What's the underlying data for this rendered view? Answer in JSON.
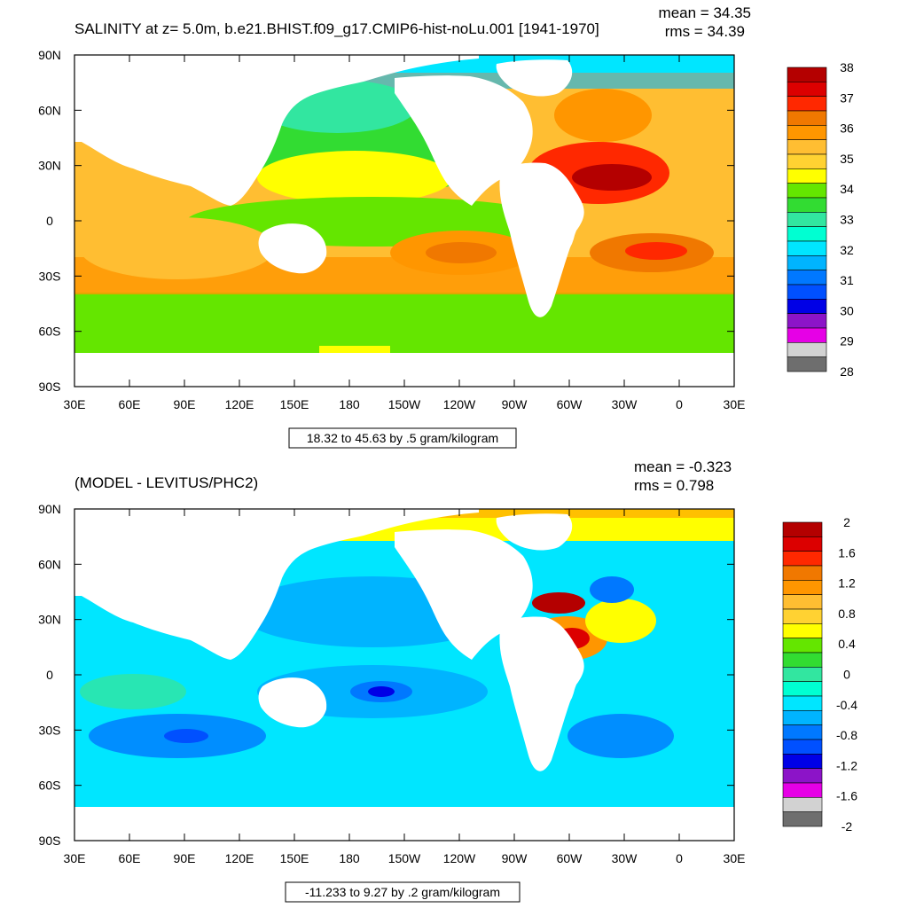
{
  "chart_data": [
    {
      "type": "heatmap",
      "title": "SALINITY at z=   5.0m, b.e21.BHIST.f09_g17.CMIP6-hist-noLu.001 [1941-1970]",
      "stats": {
        "mean": "mean = 34.35",
        "rms": "rms = 34.39"
      },
      "xticks": [
        "30E",
        "60E",
        "90E",
        "120E",
        "150E",
        "180",
        "150W",
        "120W",
        "90W",
        "60W",
        "30W",
        "0",
        "30E"
      ],
      "yticks": [
        "90N",
        "60N",
        "30N",
        "0",
        "30S",
        "60S",
        "90S"
      ],
      "contour_info": "18.32 to 45.63 by .5 gram/kilogram",
      "colorbar": {
        "labels": [
          "38",
          "37",
          "36",
          "35",
          "34",
          "33",
          "32",
          "31",
          "30",
          "29",
          "28"
        ],
        "colors": [
          "#b40000",
          "#dc0000",
          "#ff2800",
          "#f07800",
          "#ff9600",
          "#ffbe32",
          "#ffd232",
          "#ffff00",
          "#64e600",
          "#32dc32",
          "#32e6a0",
          "#00ffd2",
          "#00e6ff",
          "#00b4ff",
          "#0078ff",
          "#0050ff",
          "#0000e6",
          "#8c14c8",
          "#e600e6",
          "#d2d2d2",
          "#6e6e6e"
        ]
      }
    },
    {
      "type": "heatmap",
      "title": "(MODEL - LEVITUS/PHC2)",
      "stats": {
        "mean": "mean = -0.323",
        "rms": "rms = 0.798"
      },
      "xticks": [
        "30E",
        "60E",
        "90E",
        "120E",
        "150E",
        "180",
        "150W",
        "120W",
        "90W",
        "60W",
        "30W",
        "0",
        "30E"
      ],
      "yticks": [
        "90N",
        "60N",
        "30N",
        "0",
        "30S",
        "60S",
        "90S"
      ],
      "contour_info": "-11.233 to 9.27 by .2 gram/kilogram",
      "colorbar": {
        "labels": [
          "2",
          "1.6",
          "1.2",
          "0.8",
          "0.4",
          "0",
          "-0.4",
          "-0.8",
          "-1.2",
          "-1.6",
          "-2"
        ],
        "colors": [
          "#b40000",
          "#dc0000",
          "#ff2800",
          "#f07800",
          "#ff9600",
          "#ffbe32",
          "#ffd232",
          "#ffff00",
          "#64e600",
          "#32dc32",
          "#32e6a0",
          "#00ffd2",
          "#00e6ff",
          "#00b4ff",
          "#0078ff",
          "#0050ff",
          "#0000e6",
          "#8c14c8",
          "#e600e6",
          "#d2d2d2",
          "#6e6e6e"
        ]
      }
    }
  ]
}
